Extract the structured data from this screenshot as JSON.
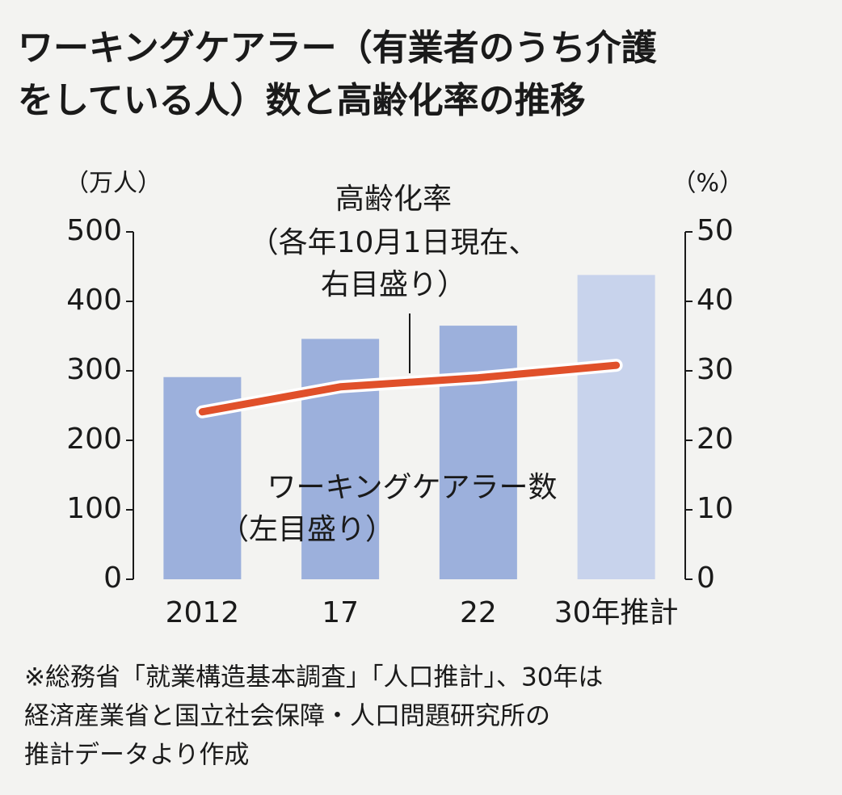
{
  "chart_data": {
    "type": "bar-line",
    "title": [
      "ワーキングケアラー（有業者のうち介護",
      "をしている人）数と高齢化率の推移"
    ],
    "y_unit": "（万人）",
    "y2_unit": "（%）",
    "line_label": [
      "高齢化率",
      "（各年10月1日現在、",
      "右目盛り）"
    ],
    "bar_label": [
      "ワーキングケアラー数",
      "（左目盛り）"
    ],
    "note": [
      "※総務省「就業構造基本調査」「人口推計」、30年は",
      "経済産業省と国立社会保障・人口問題研究所の",
      "推計データより作成"
    ],
    "categories": [
      "2012",
      "17",
      "22",
      "30年推計"
    ],
    "series": [
      {
        "name": "ワーキングケアラー数",
        "type": "bar",
        "colors": [
          "#9cb0dc",
          "#9cb0dc",
          "#9cb0dc",
          "#c8d3ec"
        ],
        "values": [
          291,
          346,
          365,
          438
        ]
      },
      {
        "name": "高齢化率",
        "type": "line",
        "axis": "y2",
        "color": "#e0502a",
        "values": [
          24.1,
          27.7,
          29.0,
          30.8
        ]
      }
    ],
    "ylim": [
      0,
      500
    ],
    "yticks": [
      0,
      100,
      200,
      300,
      400,
      500
    ],
    "y2lim": [
      0,
      50
    ],
    "y2ticks": [
      0,
      10,
      20,
      30,
      40,
      50
    ]
  }
}
